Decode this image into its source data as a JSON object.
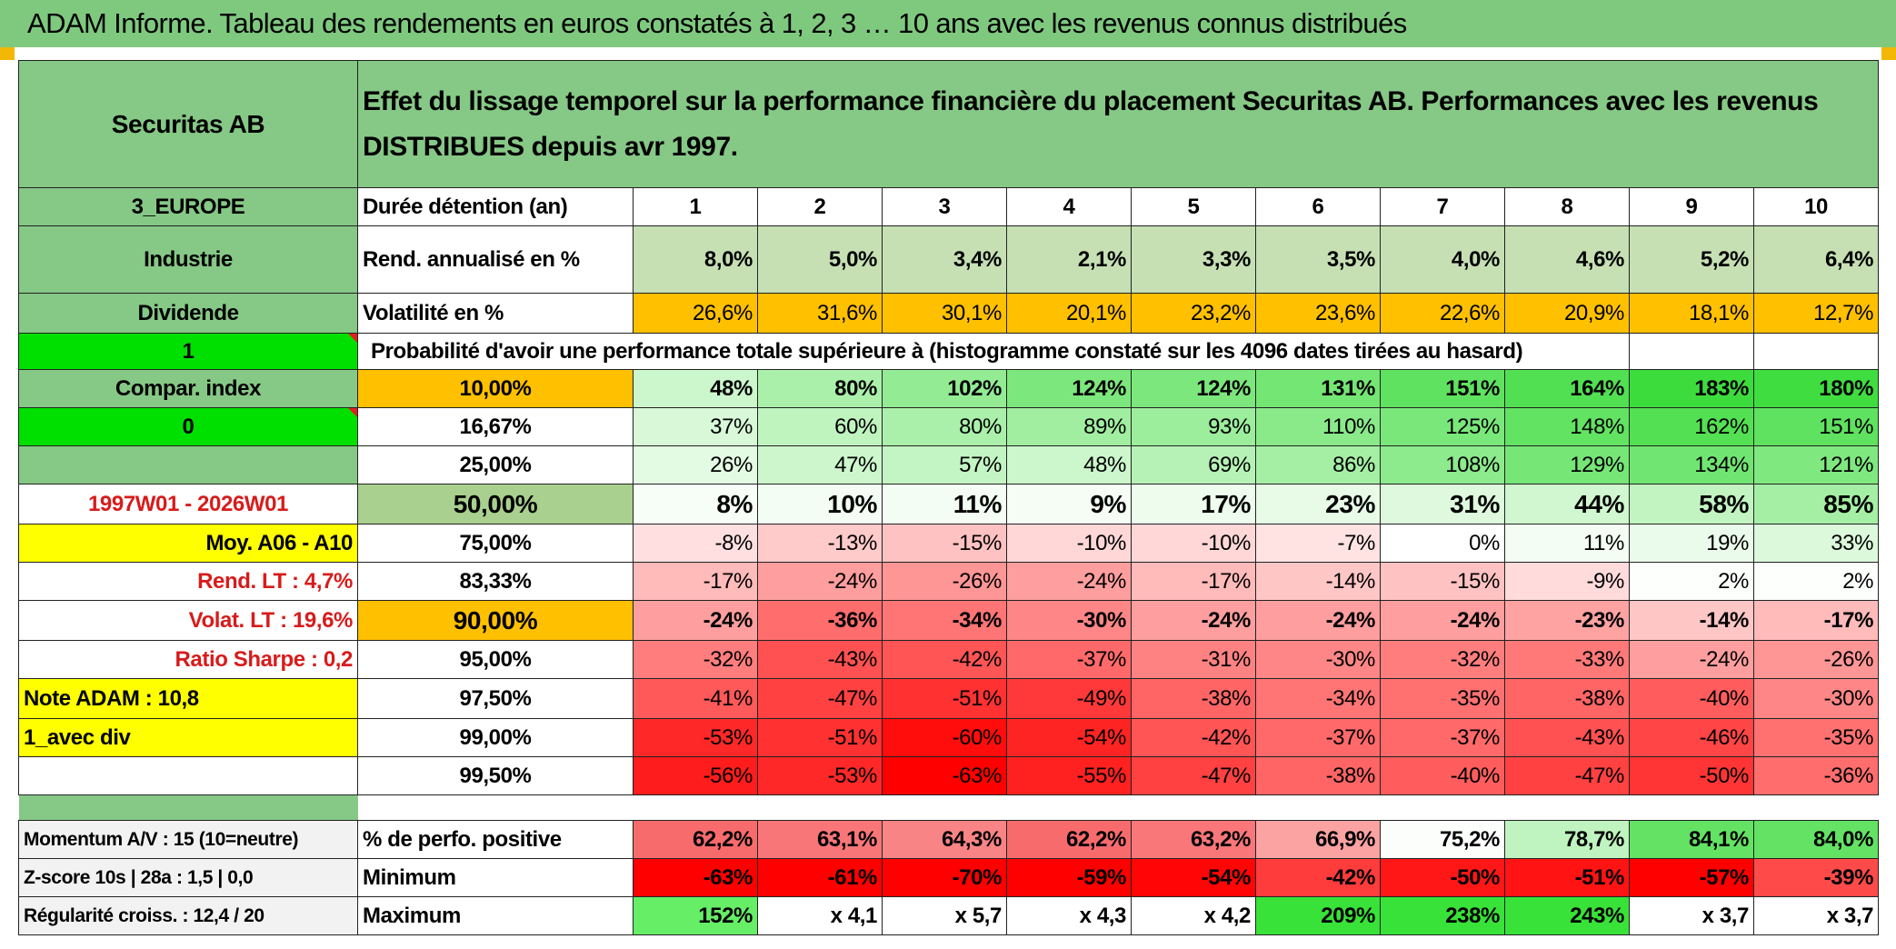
{
  "title": "ADAM Informe. Tableau des rendements en euros constatés à 1, 2, 3 … 10 ans avec les revenus connus distribués",
  "header": {
    "name": "Securitas AB",
    "description": "Effet du lissage temporel sur la performance financière du placement Securitas AB. Performances avec les revenus DISTRIBUES depuis avr 1997."
  },
  "left_labels": [
    "3_EUROPE",
    "Industrie",
    "Dividende",
    "1",
    "Compar. index",
    "0",
    "",
    "1997W01 - 2026W01",
    "Moy. A06 - A10",
    "Rend. LT :   4,7%",
    "Volat. LT :   19,6%",
    "Ratio Sharpe :    0,2",
    "Note ADAM : 10,8",
    "1_avec div",
    ""
  ],
  "row_labels": {
    "duration": "Durée détention (an)",
    "return": "Rend. annualisé en %",
    "volatility": "Volatilité en %",
    "probability": "Probabilité d'avoir une performance totale supérieure à (histogramme constaté sur les 4096 dates tirées au hasard)"
  },
  "years": [
    "1",
    "2",
    "3",
    "4",
    "5",
    "6",
    "7",
    "8",
    "9",
    "10"
  ],
  "returns": [
    "8,0%",
    "5,0%",
    "3,4%",
    "2,1%",
    "3,3%",
    "3,5%",
    "4,0%",
    "4,6%",
    "5,2%",
    "6,4%"
  ],
  "volatility": [
    "26,6%",
    "31,6%",
    "30,1%",
    "20,1%",
    "23,2%",
    "23,6%",
    "22,6%",
    "20,9%",
    "18,1%",
    "12,7%"
  ],
  "percentiles": [
    {
      "label": "10,00%",
      "values": [
        "48%",
        "80%",
        "102%",
        "124%",
        "124%",
        "131%",
        "151%",
        "164%",
        "183%",
        "180%"
      ]
    },
    {
      "label": "16,67%",
      "values": [
        "37%",
        "60%",
        "80%",
        "89%",
        "93%",
        "110%",
        "125%",
        "148%",
        "162%",
        "151%"
      ]
    },
    {
      "label": "25,00%",
      "values": [
        "26%",
        "47%",
        "57%",
        "48%",
        "69%",
        "86%",
        "108%",
        "129%",
        "134%",
        "121%"
      ]
    },
    {
      "label": "50,00%",
      "values": [
        "8%",
        "10%",
        "11%",
        "9%",
        "17%",
        "23%",
        "31%",
        "44%",
        "58%",
        "85%"
      ]
    },
    {
      "label": "75,00%",
      "values": [
        "-8%",
        "-13%",
        "-15%",
        "-10%",
        "-10%",
        "-7%",
        "0%",
        "11%",
        "19%",
        "33%"
      ]
    },
    {
      "label": "83,33%",
      "values": [
        "-17%",
        "-24%",
        "-26%",
        "-24%",
        "-17%",
        "-14%",
        "-15%",
        "-9%",
        "2%",
        "2%"
      ]
    },
    {
      "label": "90,00%",
      "values": [
        "-24%",
        "-36%",
        "-34%",
        "-30%",
        "-24%",
        "-24%",
        "-24%",
        "-23%",
        "-14%",
        "-17%"
      ]
    },
    {
      "label": "95,00%",
      "values": [
        "-32%",
        "-43%",
        "-42%",
        "-37%",
        "-31%",
        "-30%",
        "-32%",
        "-33%",
        "-24%",
        "-26%"
      ]
    },
    {
      "label": "97,50%",
      "values": [
        "-41%",
        "-47%",
        "-51%",
        "-49%",
        "-38%",
        "-34%",
        "-35%",
        "-38%",
        "-40%",
        "-30%"
      ]
    },
    {
      "label": "99,00%",
      "values": [
        "-53%",
        "-51%",
        "-60%",
        "-54%",
        "-42%",
        "-37%",
        "-37%",
        "-43%",
        "-46%",
        "-35%"
      ]
    },
    {
      "label": "99,50%",
      "values": [
        "-56%",
        "-53%",
        "-63%",
        "-55%",
        "-47%",
        "-38%",
        "-40%",
        "-47%",
        "-50%",
        "-36%"
      ]
    }
  ],
  "bottom": [
    {
      "left": "Momentum A/V : 15 (10=neutre)",
      "label": "% de perfo. positive",
      "values": [
        "62,2%",
        "63,1%",
        "64,3%",
        "62,2%",
        "63,2%",
        "66,9%",
        "75,2%",
        "78,7%",
        "84,1%",
        "84,0%"
      ]
    },
    {
      "left": "Z-score 10s | 28a : 1,5 | 0,0",
      "label": "Minimum",
      "values": [
        "-63%",
        "-61%",
        "-70%",
        "-59%",
        "-54%",
        "-42%",
        "-50%",
        "-51%",
        "-57%",
        "-39%"
      ]
    },
    {
      "left": "Régularité croiss. : 12,4 / 20",
      "label": "Maximum",
      "values": [
        "152%",
        "x 4,1",
        "x 5,7",
        "x 4,3",
        "x 4,2",
        "209%",
        "238%",
        "243%",
        "x 3,7",
        "x 3,7"
      ]
    }
  ],
  "colors": {
    "title_bg": "#7fc97f",
    "label_bg": "#86c886",
    "return_bg": "#c6e0b4",
    "orange": "#ffc000",
    "yellow": "#ffff00",
    "bright_green": "#00e000",
    "positive": "#63be7b",
    "negative": "#f8696b"
  }
}
